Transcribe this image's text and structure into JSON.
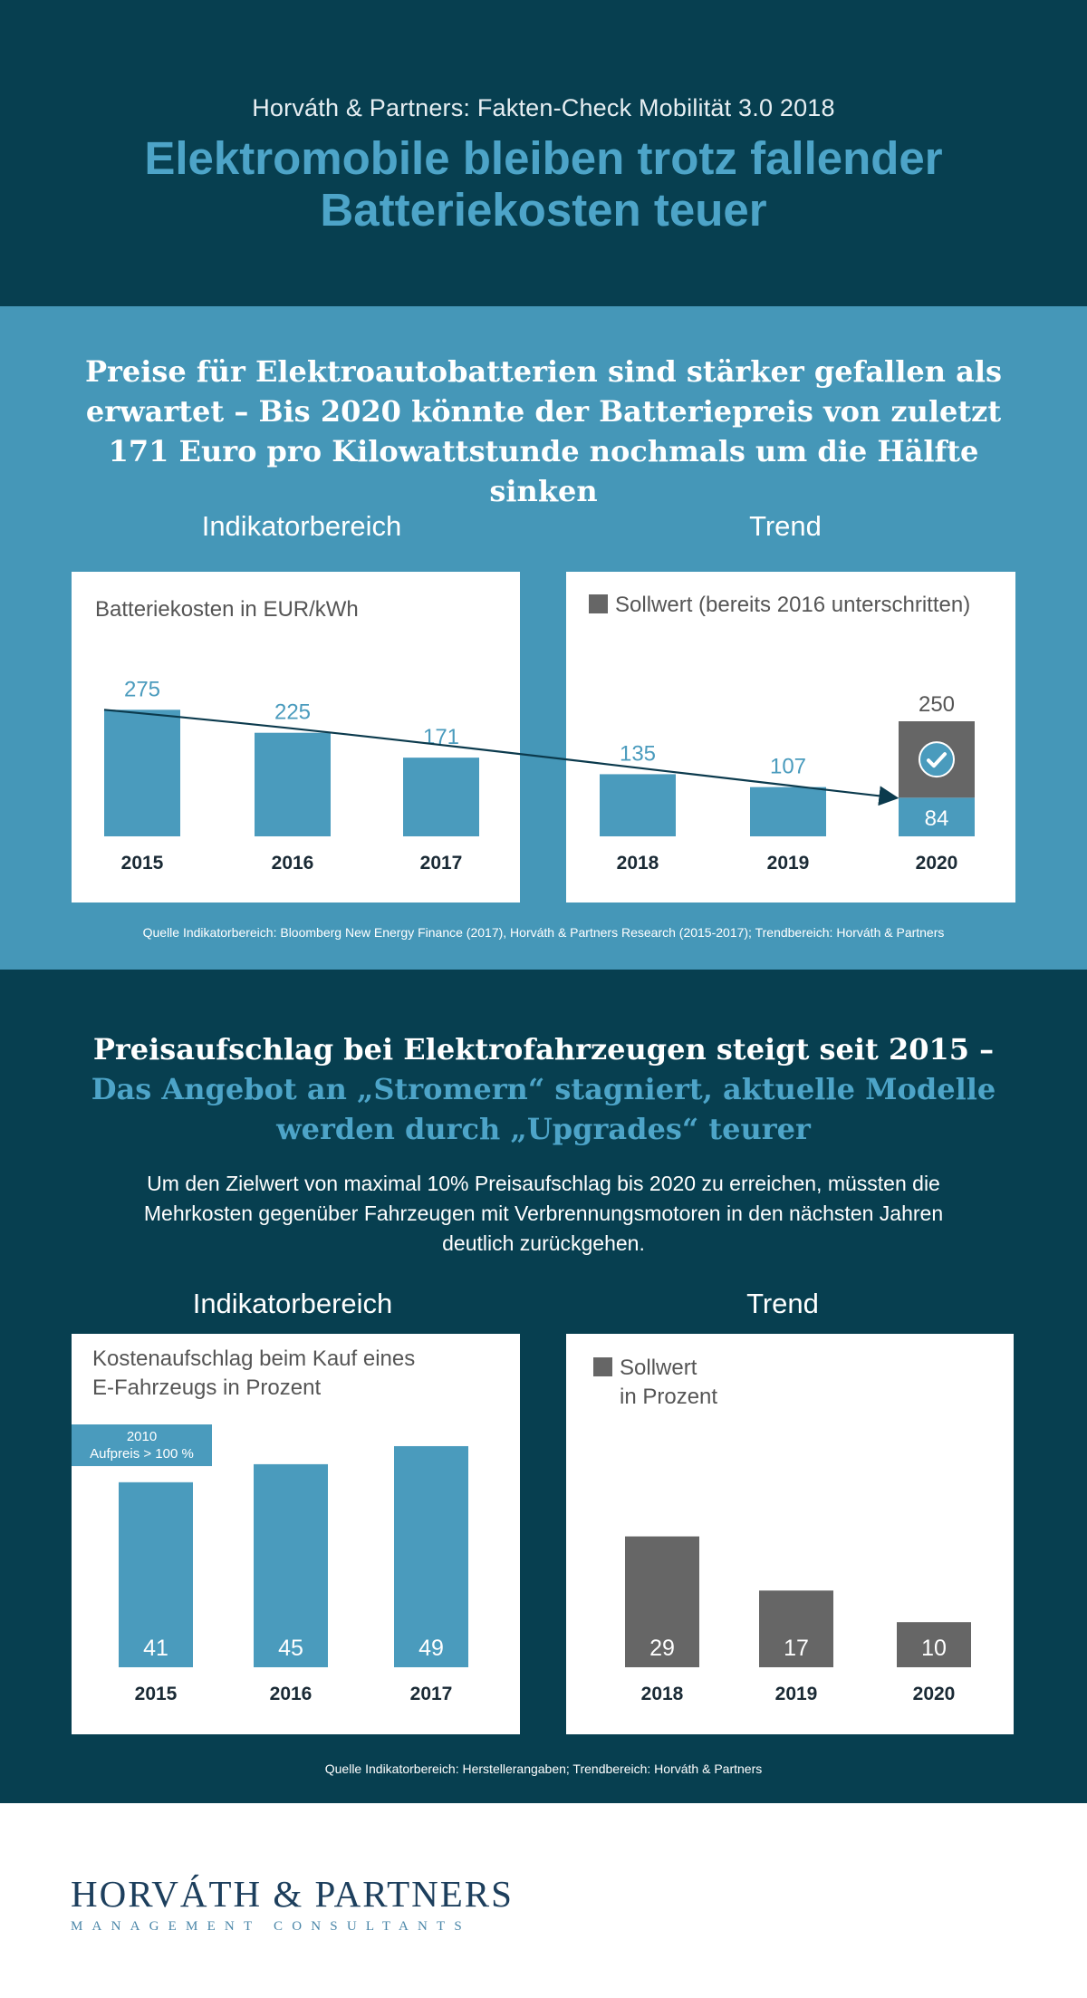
{
  "header": {
    "kicker": "Horváth & Partners: Fakten-Check Mobilität 3.0 2018",
    "title_line1": "Elektromobile bleiben trotz fallender",
    "title_line2": "Batteriekosten teuer"
  },
  "battery": {
    "headline": "Preise für Elektroautobatterien sind stärker gefallen als erwartet – Bis 2020 könnte der Batteriepreis von zuletzt 171 Euro pro Kilowattstunde nochmals um die Hälfte sinken",
    "indicator_label": "Indikatorbereich",
    "trend_label": "Trend",
    "indicator_title": "Batteriekosten in EUR/kWh",
    "trend_legend": "Sollwert (bereits 2016 unterschritten)",
    "source": "Quelle Indikatorbereich: Bloomberg New Energy Finance (2017), Horváth & Partners Research (2015-2017); Trendbereich: Horváth & Partners"
  },
  "markup": {
    "headline_line1": "Preisaufschlag bei Elektrofahrzeugen steigt seit 2015 –",
    "headline_line2": "Das Angebot an „Stromern“ stagniert, aktuelle Modelle werden durch „Upgrades“ teurer",
    "intro": "Um den Zielwert von maximal 10% Preisaufschlag bis 2020 zu erreichen, müssten die Mehrkosten gegenüber Fahrzeugen mit Verbrennungsmotoren in den nächsten Jahren deutlich zurückgehen.",
    "indicator_label": "Indikatorbereich",
    "trend_label": "Trend",
    "indicator_title_line1": "Kostenaufschlag beim Kauf eines",
    "indicator_title_line2": "E-Fahrzeugs in Prozent",
    "callout_line1": "2010",
    "callout_line2": "Aufpreis > 100 %",
    "trend_legend_line1": "Sollwert",
    "trend_legend_line2": "in Prozent",
    "source": "Quelle Indikatorbereich: Herstellerangaben; Trendbereich: Horváth & Partners"
  },
  "footer": {
    "logo_name": "HORVÁTH & PARTNERS",
    "logo_tagline": "MANAGEMENT CONSULTANTS"
  },
  "colors": {
    "dark_teal": "#073f50",
    "mid_blue": "#4597b8",
    "bar_blue": "#4a9bbd",
    "target_gray": "#666666",
    "trend_line": "#0b3a4d"
  },
  "chart_data": [
    {
      "type": "bar",
      "title": "Batteriekosten in EUR/kWh",
      "categories": [
        "2015",
        "2016",
        "2017"
      ],
      "values": [
        275,
        225,
        171
      ],
      "ylim": [
        0,
        300
      ]
    },
    {
      "type": "bar",
      "title": "Sollwert (bereits 2016 unterschritten)",
      "categories": [
        "2018",
        "2019",
        "2020"
      ],
      "values": [
        135,
        107,
        84
      ],
      "target": {
        "category": "2020",
        "value": 250,
        "icon": "check-circle-icon"
      },
      "trend_line": {
        "from": "2015",
        "to": "2020",
        "arrow": true
      },
      "ylim": [
        0,
        300
      ]
    },
    {
      "type": "bar",
      "title": "Kostenaufschlag beim Kauf eines E-Fahrzeugs in Prozent",
      "categories": [
        "2015",
        "2016",
        "2017"
      ],
      "values": [
        41,
        45,
        49
      ],
      "ylim": [
        0,
        52
      ]
    },
    {
      "type": "bar",
      "title": "Sollwert in Prozent",
      "categories": [
        "2018",
        "2019",
        "2020"
      ],
      "values": [
        29,
        17,
        10
      ],
      "ylim": [
        0,
        52
      ]
    }
  ]
}
